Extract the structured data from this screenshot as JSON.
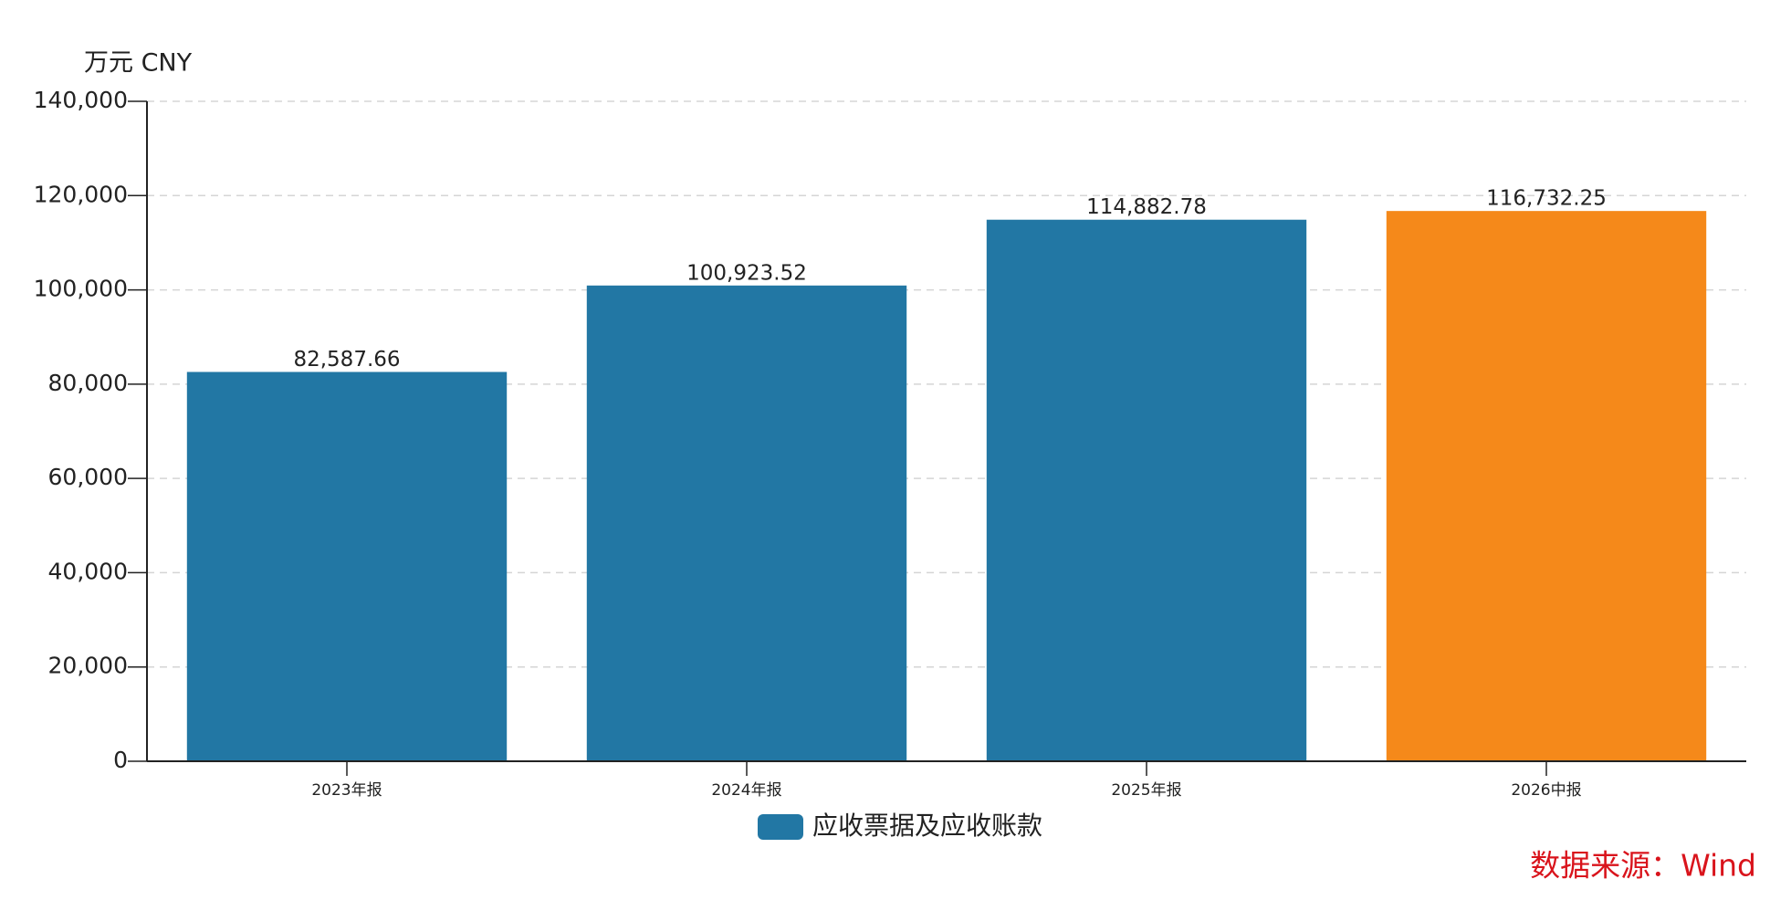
{
  "chart_data": {
    "type": "bar",
    "unit_label": "万元  CNY",
    "source": "数据来源：Wind",
    "categories": [
      "2023年报",
      "2024年报",
      "2025年报",
      "2026中报"
    ],
    "series": [
      {
        "name": "应收票据及应收账款",
        "color": "#2277a4",
        "bar_colors": [
          "#2277a4",
          "#2277a4",
          "#2277a4",
          "#f5891a"
        ],
        "values": [
          82587.66,
          100923.52,
          114882.78,
          116732.25
        ],
        "value_labels": [
          "82,587.66",
          "100,923.52",
          "114,882.78",
          "116,732.25"
        ]
      }
    ],
    "ylim": [
      0,
      140000
    ],
    "yticks": [
      0,
      {
        "value": 20000,
        "label": "20,000"
      },
      {
        "value": 40000,
        "label": "40,000"
      },
      {
        "value": 60000,
        "label": "60,000"
      },
      {
        "value": 80000,
        "label": "80,000"
      },
      {
        "value": 100000,
        "label": "100,000"
      },
      {
        "value": 120000,
        "label": "120,000"
      },
      {
        "value": 140000,
        "label": "140,000"
      }
    ],
    "grid": true
  }
}
